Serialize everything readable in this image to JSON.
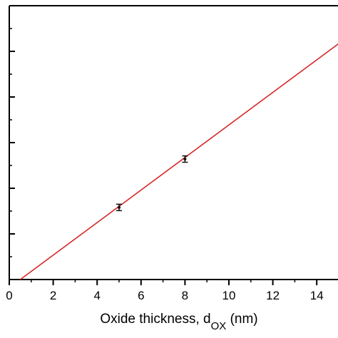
{
  "chart_data": {
    "type": "line",
    "xlabel_main": "Oxide thickness, d",
    "xlabel_sub": "OX",
    "xlabel_unit": " (nm)",
    "x_ticks": [
      "0",
      "2",
      "4",
      "6",
      "8",
      "10",
      "12",
      "14"
    ],
    "xlim": [
      0,
      15
    ],
    "y_tick_labels_visible": false,
    "grid": false,
    "legend": "none",
    "series": [
      {
        "fit_line": {
          "x": [
            0.5,
            15
          ],
          "y": [
            0,
            5.17
          ]
        },
        "points": [
          {
            "x": 5,
            "y": 1.58,
            "err": 0.07
          },
          {
            "x": 8,
            "y": 2.64,
            "err": 0.07
          }
        ]
      }
    ],
    "ylim": [
      0,
      6
    ],
    "colors": {
      "line": "#d62828",
      "points": "#111111",
      "axis": "#000000"
    }
  }
}
